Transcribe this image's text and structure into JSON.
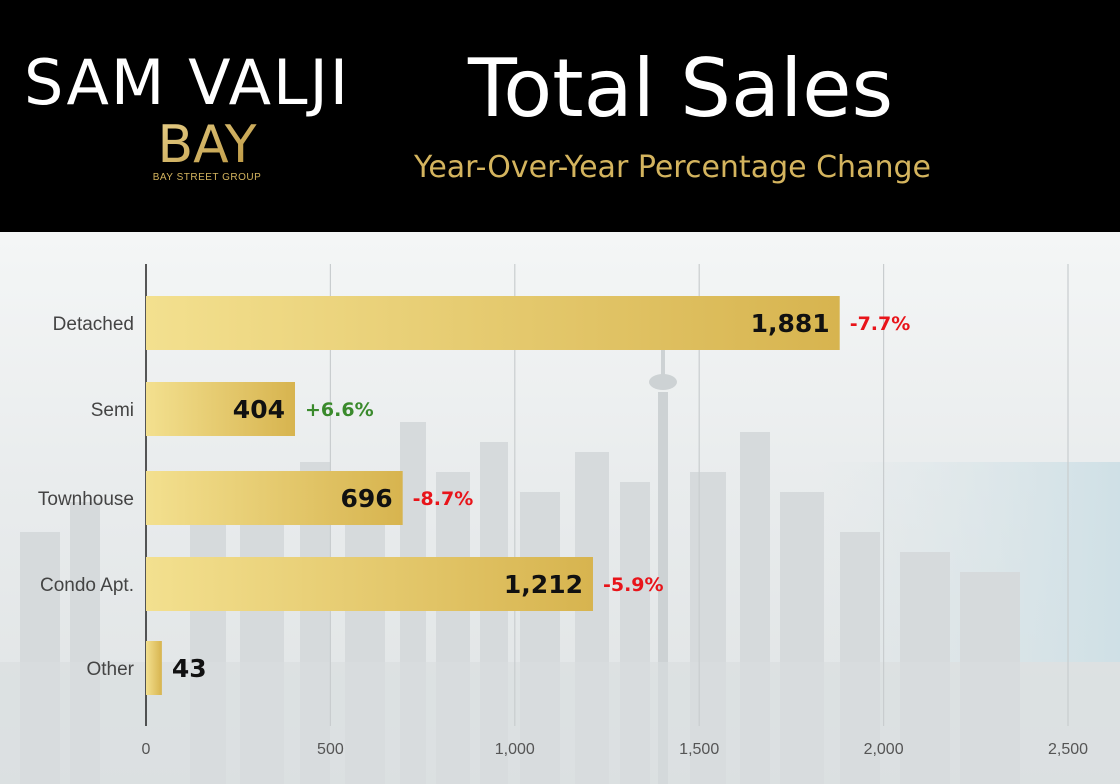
{
  "header": {
    "brand": "SAM VALJI",
    "logo_text": "BAY",
    "logo_sub": "BAY STREET GROUP",
    "title": "Total Sales",
    "subtitle": "Year-Over-Year Percentage Change"
  },
  "colors": {
    "header_bg": "#000000",
    "gold": "#d4b45e",
    "positive": "#3a8a2c",
    "negative": "#e8141a"
  },
  "chart_data": {
    "type": "bar",
    "orientation": "horizontal",
    "title": "Total Sales",
    "subtitle": "Year-Over-Year Percentage Change",
    "categories": [
      "Detached",
      "Semi",
      "Townhouse",
      "Condo Apt.",
      "Other"
    ],
    "values": [
      1881,
      404,
      696,
      1212,
      43
    ],
    "value_labels": [
      "1,881",
      "404",
      "696",
      "1,212",
      "43"
    ],
    "yoy_change": [
      "-7.7%",
      "+6.6%",
      "-8.7%",
      "-5.9%",
      ""
    ],
    "xlim": [
      0,
      2500
    ],
    "xticks": [
      0,
      500,
      1000,
      1500,
      2000,
      2500
    ],
    "xtick_labels": [
      "0",
      "500",
      "1,000",
      "1,500",
      "2,000",
      "2,500"
    ],
    "grid": true
  }
}
